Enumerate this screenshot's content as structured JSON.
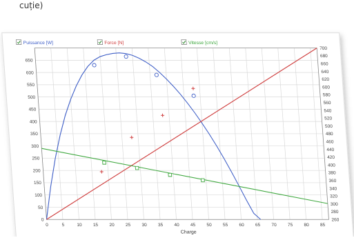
{
  "caption": "cuție)",
  "legend": [
    {
      "label": "Puissance [W]",
      "color": "#3f5fc7",
      "checked": true,
      "icon": "checkbox-checked-icon"
    },
    {
      "label": "Force [N]",
      "color": "#d04040",
      "checked": true,
      "icon": "checkbox-checked-icon"
    },
    {
      "label": "Vitesse [cm/s]",
      "color": "#3fa83f",
      "checked": true,
      "icon": "checkbox-checked-icon"
    }
  ],
  "colors": {
    "puissance": "#3f5fc7",
    "force": "#d04040",
    "vitesse": "#3fa83f",
    "grid": "#d9d9d9"
  },
  "chart_data": {
    "type": "scatter",
    "xlabel": "Charge",
    "xlim": [
      0,
      87
    ],
    "ylim": [
      0,
      700
    ],
    "y2lim": [
      260,
      700
    ],
    "grid": true,
    "legend_position": "top",
    "xticks": [
      0,
      5,
      10,
      15,
      20,
      25,
      30,
      35,
      40,
      45,
      50,
      55,
      60,
      65,
      70,
      75,
      80,
      85
    ],
    "yticks_left": [
      0,
      50,
      100,
      150,
      200,
      250,
      300,
      350,
      400,
      450,
      500,
      550,
      600,
      650
    ],
    "yticks_right": [
      260,
      280,
      300,
      320,
      340,
      360,
      380,
      400,
      420,
      440,
      460,
      480,
      500,
      520,
      540,
      560,
      580,
      600,
      620,
      640,
      660,
      680,
      700
    ],
    "series": [
      {
        "name": "Puissance [W]",
        "axis": "left",
        "points": [
          [
            18,
            630
          ],
          [
            28,
            665
          ],
          [
            37,
            590
          ],
          [
            48,
            505
          ]
        ],
        "curve": [
          [
            0,
            0
          ],
          [
            2,
            135
          ],
          [
            4,
            250
          ],
          [
            6,
            345
          ],
          [
            8,
            425
          ],
          [
            10,
            490
          ],
          [
            12,
            545
          ],
          [
            14,
            590
          ],
          [
            16,
            625
          ],
          [
            18,
            650
          ],
          [
            20,
            665
          ],
          [
            22,
            673
          ],
          [
            24,
            678
          ],
          [
            26,
            680
          ],
          [
            28,
            677
          ],
          [
            30,
            670
          ],
          [
            32,
            658
          ],
          [
            34,
            643
          ],
          [
            36,
            624
          ],
          [
            38,
            600
          ],
          [
            40,
            573
          ],
          [
            42,
            543
          ],
          [
            44,
            510
          ],
          [
            46,
            474
          ],
          [
            48,
            435
          ],
          [
            50,
            393
          ],
          [
            52,
            348
          ],
          [
            54,
            300
          ],
          [
            56,
            249
          ],
          [
            58,
            195
          ],
          [
            60,
            138
          ],
          [
            62,
            80
          ],
          [
            64,
            25
          ],
          [
            66,
            0
          ]
        ],
        "marker": "circle"
      },
      {
        "name": "Force [N]",
        "axis": "left",
        "points": [
          [
            18,
            195
          ],
          [
            28,
            335
          ],
          [
            38,
            425
          ],
          [
            48,
            535
          ]
        ],
        "line": [
          [
            0,
            0
          ],
          [
            87,
            700
          ]
        ],
        "marker": "plus"
      },
      {
        "name": "Vitesse [cm/s]",
        "axis": "left",
        "points": [
          [
            19,
            232
          ],
          [
            29,
            210
          ],
          [
            39,
            182
          ],
          [
            49,
            160
          ]
        ],
        "line": [
          [
            0,
            290
          ],
          [
            87,
            65
          ]
        ],
        "marker": "square"
      }
    ]
  }
}
